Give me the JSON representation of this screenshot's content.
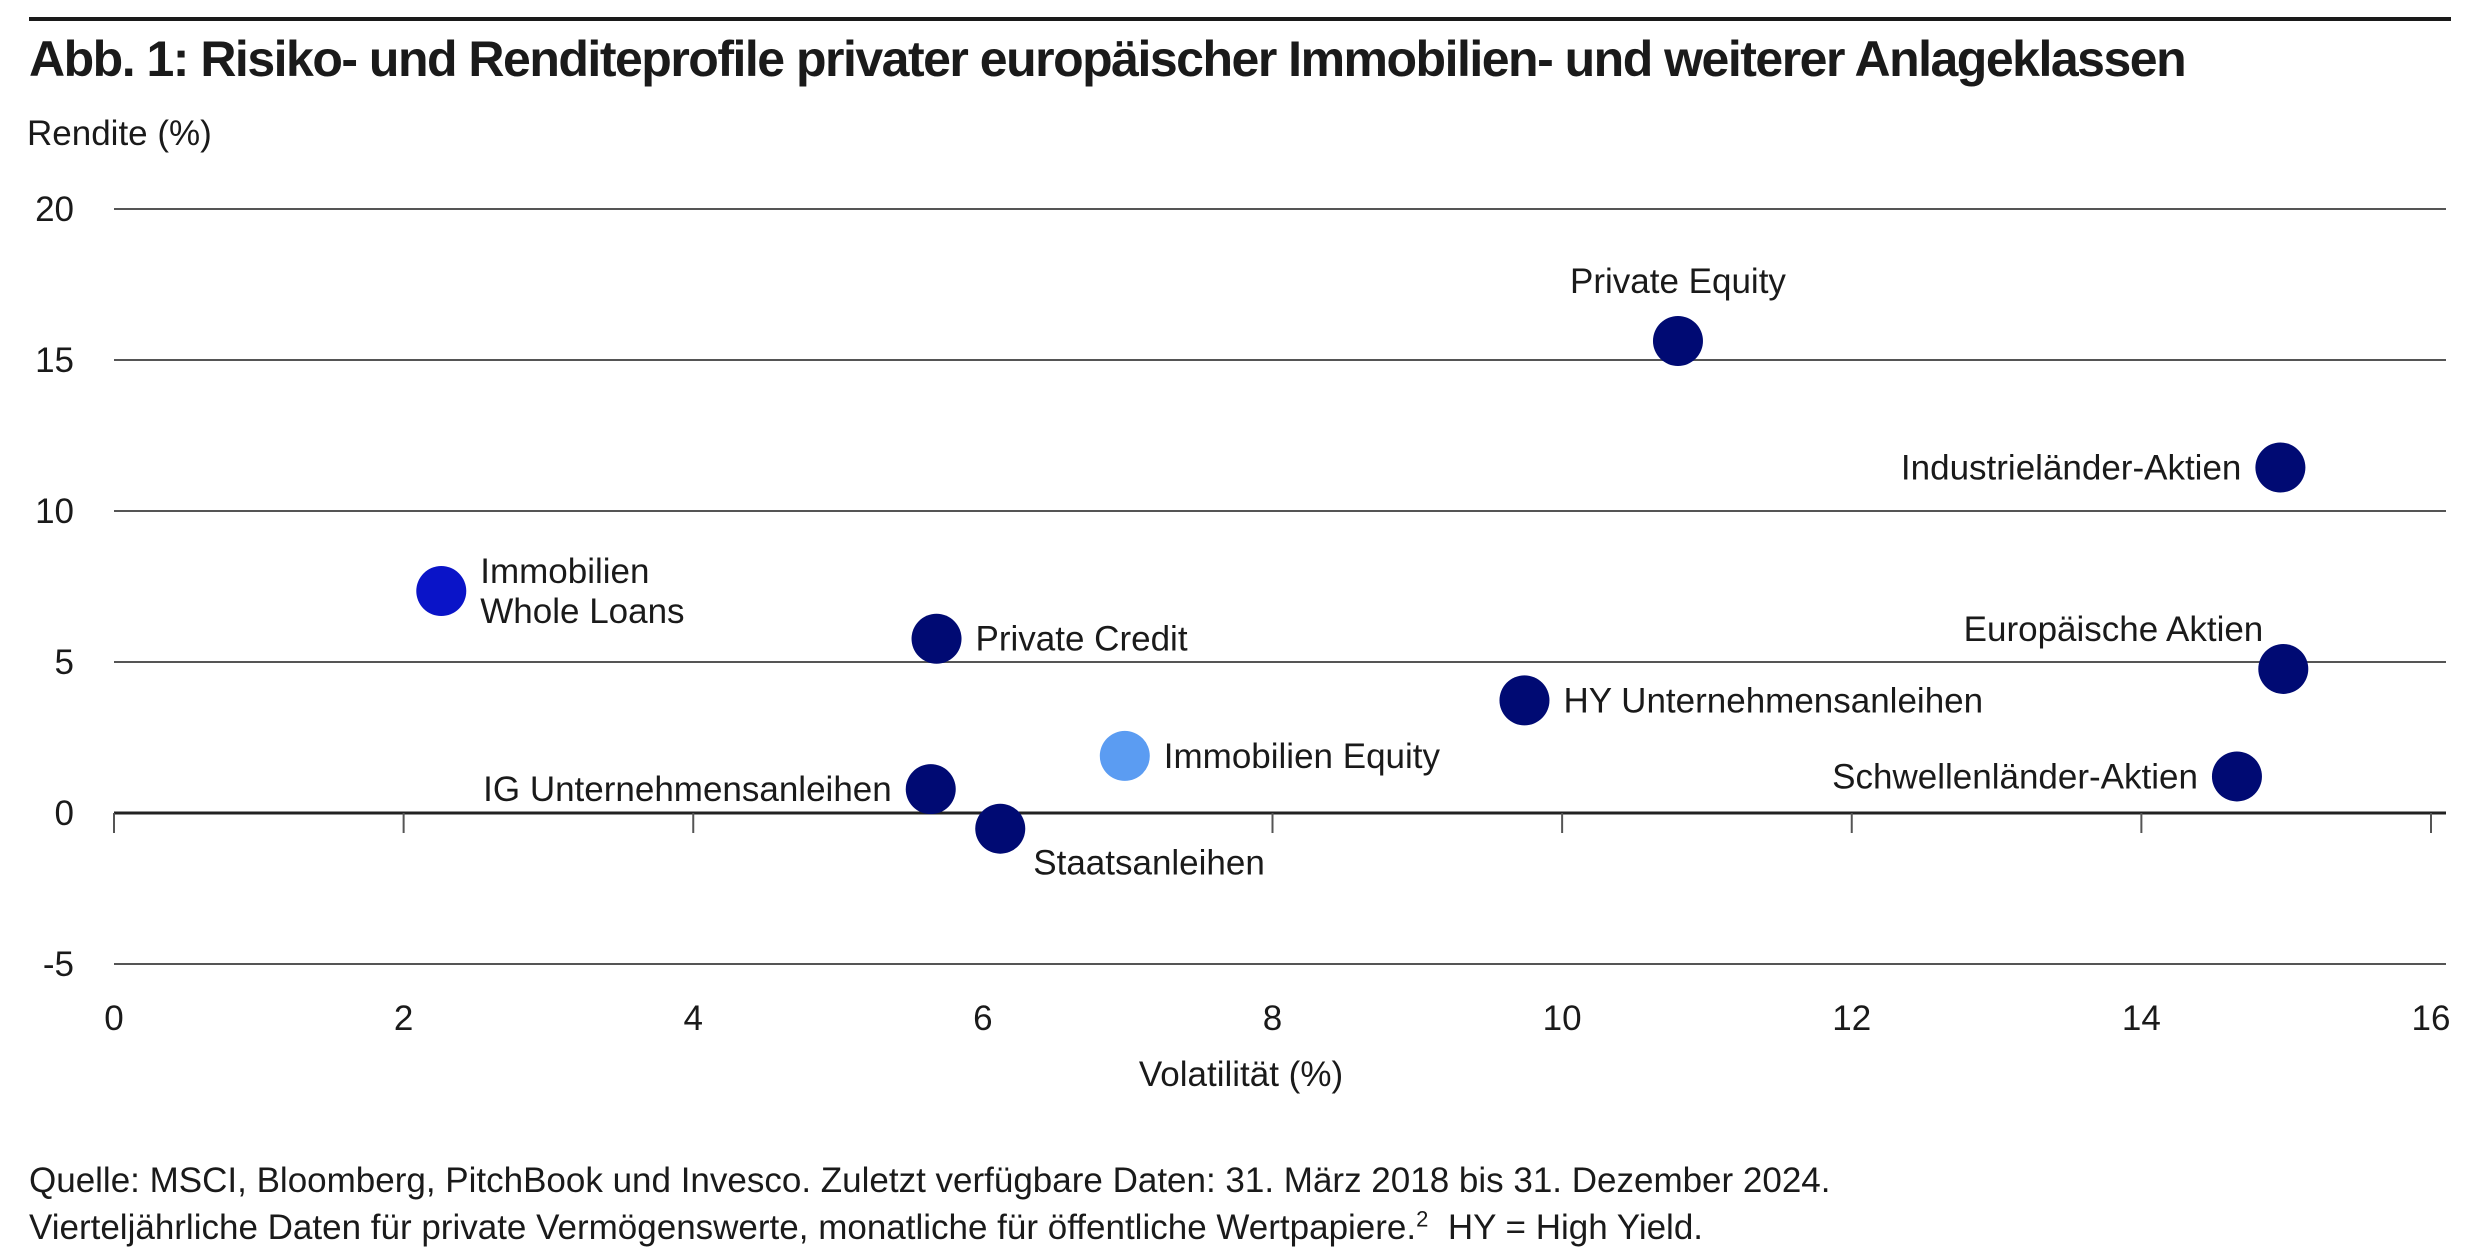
{
  "title": "Abb. 1: Risiko- und Renditeprofile privater europäischer Immobilien- und weiterer Anlageklassen",
  "colors": {
    "dark": "#000a73",
    "medium": "#0a14c8",
    "light": "#5b9cf2",
    "grid": "#555555",
    "text": "#1a1a1a"
  },
  "chart_data": {
    "type": "scatter",
    "title": "Abb. 1: Risiko- und Renditeprofile privater europäischer Immobilien- und weiterer Anlageklassen",
    "xlabel": "Volatilität (%)",
    "ylabel": "Rendite (%)",
    "xlim": [
      0,
      16
    ],
    "ylim": [
      -5,
      20
    ],
    "xticks": [
      0,
      2,
      4,
      6,
      8,
      10,
      12,
      14,
      16
    ],
    "yticks": [
      -5,
      0,
      5,
      10,
      15,
      20
    ],
    "grid": "horizontal",
    "legend": "none",
    "points": [
      {
        "label": [
          "Immobilien",
          "Whole Loans"
        ],
        "x": 2.26,
        "y": 7.35,
        "color": "medium",
        "label_pos": "right"
      },
      {
        "label": [
          "Private Credit"
        ],
        "x": 5.68,
        "y": 5.77,
        "color": "dark",
        "label_pos": "right"
      },
      {
        "label": [
          "IG Unternehmensanleihen"
        ],
        "x": 5.64,
        "y": 0.79,
        "color": "dark",
        "label_pos": "left"
      },
      {
        "label": [
          "Staatsanleihen"
        ],
        "x": 6.12,
        "y": -0.52,
        "color": "dark",
        "label_pos": "below-right"
      },
      {
        "label": [
          "Immobilien Equity"
        ],
        "x": 6.98,
        "y": 1.89,
        "color": "light",
        "label_pos": "right"
      },
      {
        "label": [
          "HY Unternehmensanleihen"
        ],
        "x": 9.74,
        "y": 3.73,
        "color": "dark",
        "label_pos": "right"
      },
      {
        "label": [
          "Private Equity"
        ],
        "x": 10.8,
        "y": 15.63,
        "color": "dark",
        "label_pos": "above"
      },
      {
        "label": [
          "Industrieländer-Aktien"
        ],
        "x": 14.96,
        "y": 11.44,
        "color": "dark",
        "label_pos": "left"
      },
      {
        "label": [
          "Europäische Aktien"
        ],
        "x": 14.98,
        "y": 4.77,
        "color": "dark",
        "label_pos": "above-left"
      },
      {
        "label": [
          "Schwellenländer-Aktien"
        ],
        "x": 14.66,
        "y": 1.21,
        "color": "dark",
        "label_pos": "left"
      }
    ]
  },
  "footer": {
    "line1": "Quelle: MSCI, Bloomberg, PitchBook und Invesco. Zuletzt verfügbare Daten: 31. März 2018 bis 31. Dezember 2024.",
    "line2_a": "Vierteljährliche Daten für private Vermögenswerte, monatliche für öffentliche Wertpapiere.",
    "line2_sup": "2",
    "line2_b": "  HY = High Yield."
  }
}
